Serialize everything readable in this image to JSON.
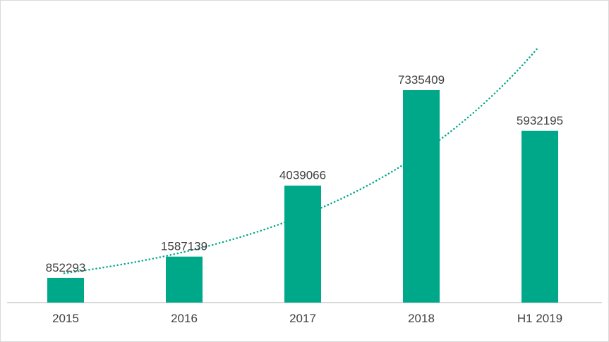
{
  "chart_data": {
    "type": "bar",
    "title": "",
    "xlabel": "",
    "ylabel": "",
    "categories": [
      "2015",
      "2016",
      "2017",
      "2018",
      "H1 2019"
    ],
    "values": [
      852293,
      1587139,
      4039066,
      7335409,
      5932195
    ],
    "data_labels": [
      "852293",
      "1587139",
      "4039066",
      "7335409",
      "5932195"
    ],
    "ylim": [
      0,
      9000000
    ],
    "grid": false,
    "legend": "none",
    "trendline": {
      "type": "exponential",
      "style": "dotted"
    },
    "colors": {
      "bar": "#00A88A",
      "trendline": "#00A88A",
      "axis": "#d9d9d9",
      "text": "#404040"
    }
  }
}
